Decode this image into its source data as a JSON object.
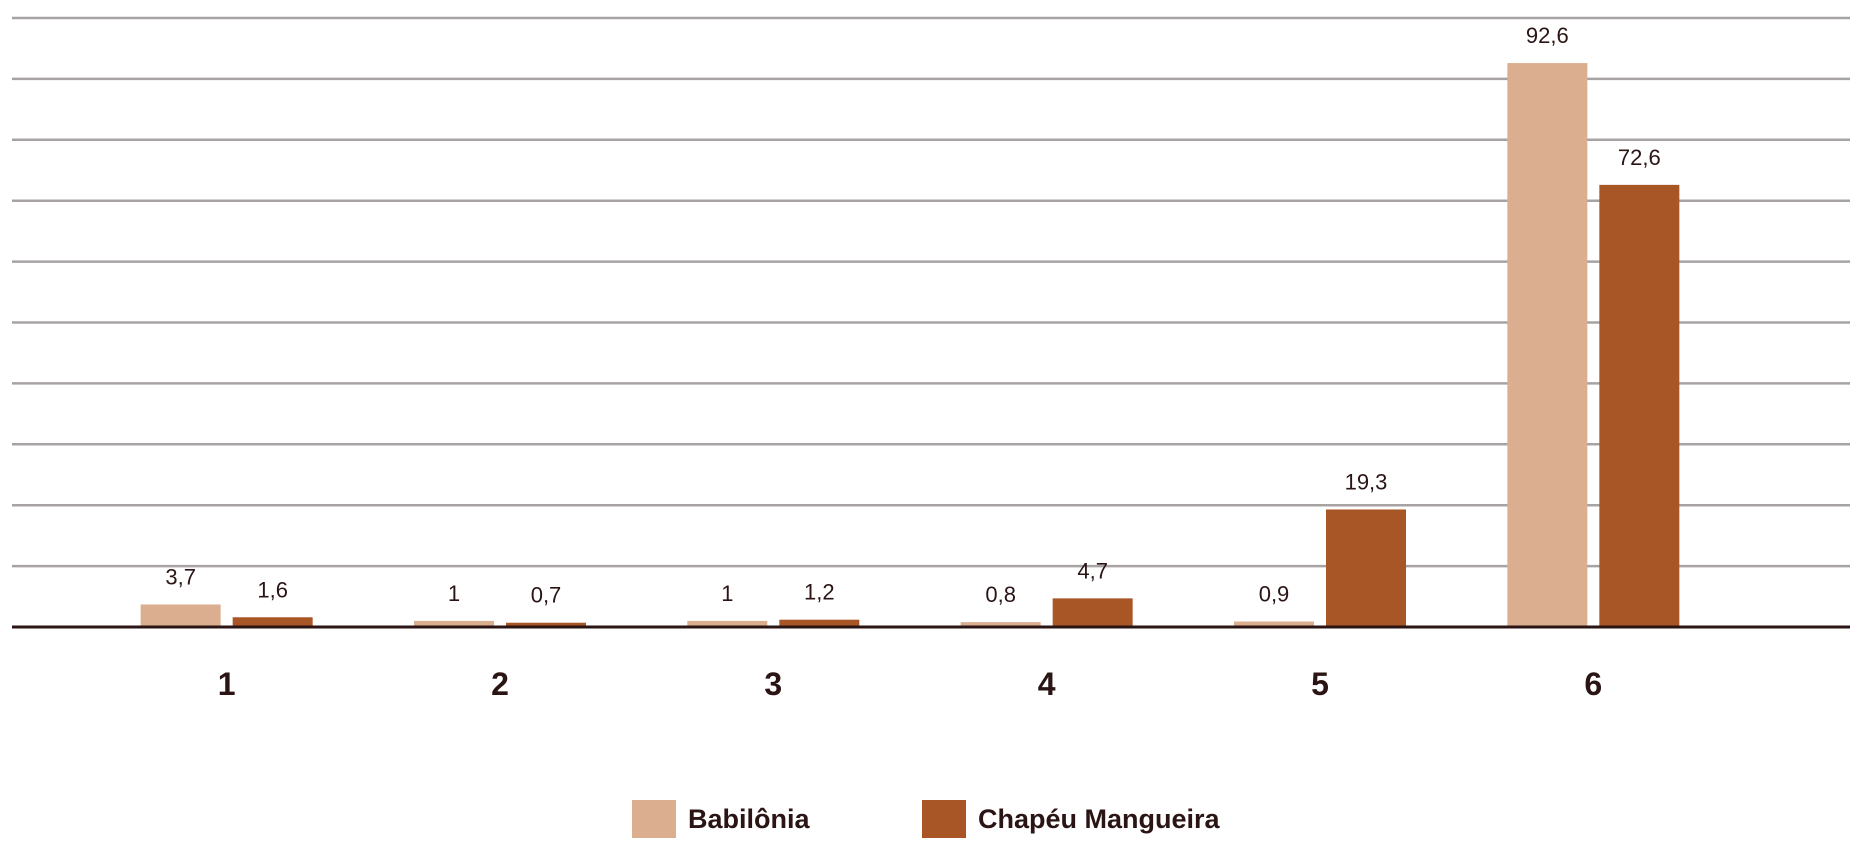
{
  "chart_data": {
    "type": "bar",
    "categories": [
      "1",
      "2",
      "3",
      "4",
      "5",
      "6"
    ],
    "series": [
      {
        "name": "Babilônia",
        "color": "#dbae8f",
        "values": [
          3.7,
          1,
          1,
          0.8,
          0.9,
          92.6
        ],
        "labels": [
          "3,7",
          "1",
          "1",
          "0,8",
          "0,9",
          "92,6"
        ]
      },
      {
        "name": "Chapéu Mangueira",
        "color": "#a95627",
        "values": [
          1.6,
          0.7,
          1.2,
          4.7,
          19.3,
          72.6
        ],
        "labels": [
          "1,6",
          "0,7",
          "1,2",
          "4,7",
          "19,3",
          "72,6"
        ]
      }
    ],
    "ylim": [
      0,
      100
    ],
    "grid": true,
    "legend_position": "bottom"
  }
}
